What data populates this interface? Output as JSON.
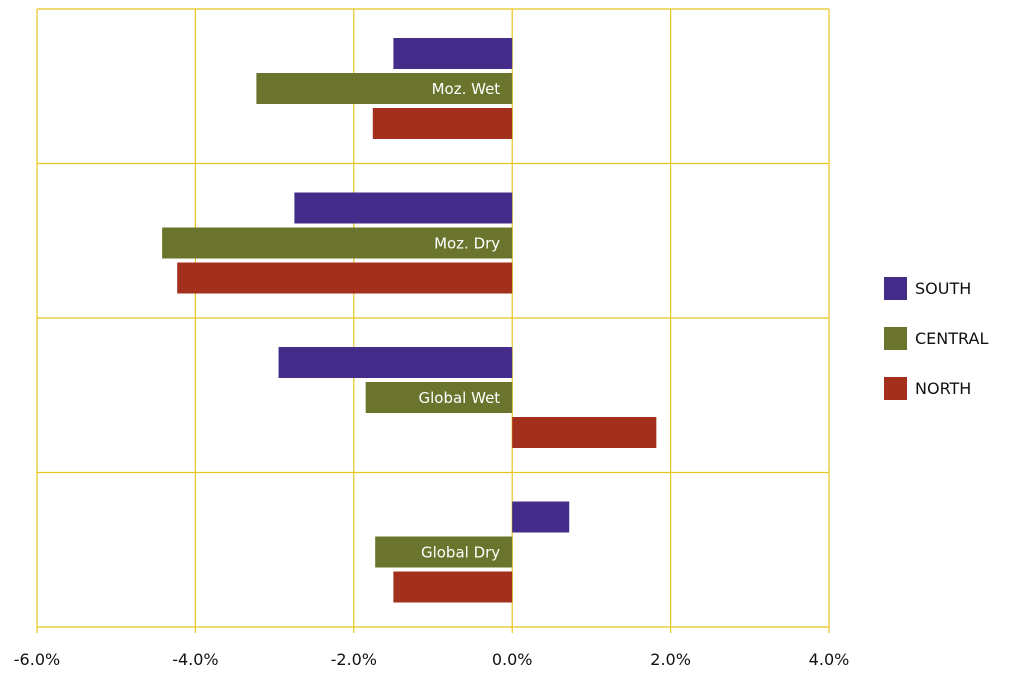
{
  "chart_data": {
    "type": "bar",
    "orientation": "horizontal",
    "categories": [
      "Moz. Wet",
      "Moz. Dry",
      "Global Wet",
      "Global Dry"
    ],
    "series": [
      {
        "name": "SOUTH",
        "color": "#432c8a",
        "values": [
          -1.5,
          -2.75,
          -2.95,
          0.72
        ]
      },
      {
        "name": "CENTRAL",
        "color": "#6b742c",
        "values": [
          -3.23,
          -4.42,
          -1.85,
          -1.73
        ]
      },
      {
        "name": "NORTH",
        "color": "#a2301d",
        "values": [
          -1.76,
          -4.23,
          1.82,
          -1.5
        ]
      }
    ],
    "xlim": [
      -6,
      4
    ],
    "xticks": [
      "-6.0%",
      "-4.0%",
      "-2.0%",
      "0.0%",
      "2.0%",
      "4.0%"
    ],
    "xtick_values": [
      -6,
      -4,
      -2,
      0,
      2,
      4
    ],
    "grid": true,
    "grid_color": "#e5c51e",
    "legend_position": "right",
    "title": "",
    "xlabel": "",
    "ylabel": ""
  }
}
